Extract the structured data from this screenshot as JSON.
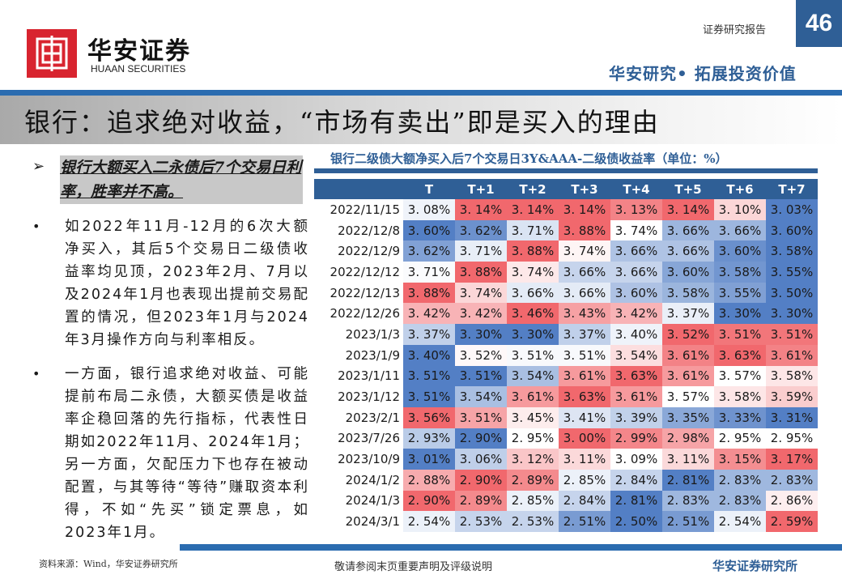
{
  "header": {
    "brand_cn": "华安证券",
    "brand_en": "HUAAN SECURITIES",
    "report_type": "证券研究报告",
    "page_number": "46",
    "slogan": "华安研究• 拓展投资价值"
  },
  "title": "银行：追求绝对收益，“市场有卖出”即是买入的理由",
  "left": {
    "highlight": "银行大额买入二永债后7个交易日利率，胜率并不高。",
    "bullets": [
      "如2022年11月-12月的6次大额净买入，其后5个交易日二级债收益率均见顶，2023年2月、7月以及2024年1月也表现出提前交易配置的情况，但2023年1月与2024年3月操作方向与利率相反。",
      "一方面，银行追求绝对收益、可能提前布局二永债，大额买债是收益率企稳回落的先行指标，代表性日期如2022年11月、2024年1月；另一方面，欠配压力下也存在被动配置，与其等待“等待”赚取资本利得，不如“先买”锁定票息，如2023年1月。"
    ]
  },
  "chart_data": {
    "type": "heatmap",
    "title": "银行二级债大额净买入后7个交易日3Y&AAA-二级债收益率（单位：%）",
    "columns": [
      "T",
      "T+1",
      "T+2",
      "T+3",
      "T+4",
      "T+5",
      "T+6",
      "T+7"
    ],
    "rows": [
      {
        "date": "2022/11/15",
        "values": [
          3.08,
          3.14,
          3.14,
          3.14,
          3.13,
          3.14,
          3.1,
          3.03
        ]
      },
      {
        "date": "2022/12/8",
        "values": [
          3.6,
          3.62,
          3.71,
          3.88,
          3.74,
          3.66,
          3.66,
          3.6
        ]
      },
      {
        "date": "2022/12/9",
        "values": [
          3.62,
          3.71,
          3.88,
          3.74,
          3.66,
          3.66,
          3.6,
          3.58
        ]
      },
      {
        "date": "2022/12/12",
        "values": [
          3.71,
          3.88,
          3.74,
          3.66,
          3.66,
          3.6,
          3.58,
          3.55
        ]
      },
      {
        "date": "2022/12/13",
        "values": [
          3.88,
          3.74,
          3.66,
          3.66,
          3.6,
          3.58,
          3.55,
          3.5
        ]
      },
      {
        "date": "2022/12/26",
        "values": [
          3.42,
          3.42,
          3.46,
          3.43,
          3.42,
          3.37,
          3.3,
          3.3
        ]
      },
      {
        "date": "2023/1/3",
        "values": [
          3.37,
          3.3,
          3.3,
          3.37,
          3.4,
          3.52,
          3.51,
          3.51
        ]
      },
      {
        "date": "2023/1/9",
        "values": [
          3.4,
          3.52,
          3.51,
          3.51,
          3.54,
          3.61,
          3.63,
          3.61
        ]
      },
      {
        "date": "2023/1/11",
        "values": [
          3.51,
          3.51,
          3.54,
          3.61,
          3.63,
          3.61,
          3.57,
          3.58
        ]
      },
      {
        "date": "2023/1/12",
        "values": [
          3.51,
          3.54,
          3.61,
          3.63,
          3.61,
          3.57,
          3.58,
          3.59
        ]
      },
      {
        "date": "2023/2/1",
        "values": [
          3.56,
          3.51,
          3.45,
          3.41,
          3.39,
          3.35,
          3.33,
          3.31
        ]
      },
      {
        "date": "2023/7/26",
        "values": [
          2.93,
          2.9,
          2.95,
          3.0,
          2.99,
          2.98,
          2.95,
          2.95
        ]
      },
      {
        "date": "2023/10/9",
        "values": [
          3.01,
          3.06,
          3.12,
          3.11,
          3.09,
          3.11,
          3.15,
          3.17
        ]
      },
      {
        "date": "2024/1/2",
        "values": [
          2.88,
          2.9,
          2.89,
          2.85,
          2.84,
          2.81,
          2.83,
          2.83
        ]
      },
      {
        "date": "2024/1/3",
        "values": [
          2.9,
          2.89,
          2.85,
          2.84,
          2.81,
          2.83,
          2.83,
          2.86
        ]
      },
      {
        "date": "2024/3/1",
        "values": [
          2.54,
          2.53,
          2.53,
          2.51,
          2.5,
          2.51,
          2.54,
          2.59
        ]
      }
    ],
    "unit": "%",
    "color_low": "#4a78c2",
    "color_mid": "#ffffff",
    "color_high": "#f06065"
  },
  "footer": {
    "source": "资料来源：Wind，华安证券研究所",
    "disclaimer": "敬请参阅末页重要声明及评级说明",
    "brand": "华安证券研究所"
  },
  "colors": {
    "brand_blue": "#2f5f96",
    "brand_red": "#d8242f"
  }
}
